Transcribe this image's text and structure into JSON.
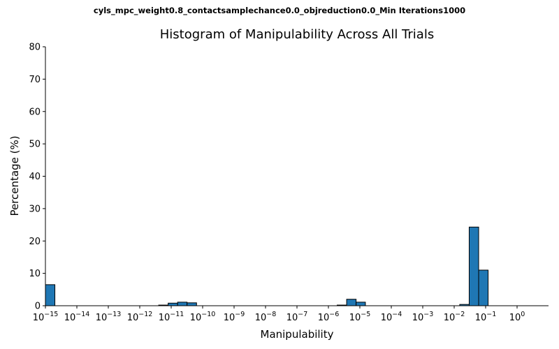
{
  "suptitle": "cyls_mpc_weight0.8_contactsamplechance0.0_objreduction0.0_Min Iterations1000",
  "chart_data": {
    "type": "bar",
    "title": "Histogram of Manipulability Across All Trials",
    "xlabel": "Manipulability",
    "ylabel": "Percentage (%)",
    "xscale": "log",
    "xlim": [
      "1e-15",
      "1e0"
    ],
    "ylim": [
      0,
      80
    ],
    "yticks": [
      0,
      10,
      20,
      30,
      40,
      50,
      60,
      70,
      80
    ],
    "xtick_exponents": [
      "-15",
      "-14",
      "-13",
      "-12",
      "-11",
      "-10",
      "-9",
      "-8",
      "-7",
      "-6",
      "-5",
      "-4",
      "-3",
      "-2",
      "-1",
      "0"
    ],
    "bar_color": "#1f77b4",
    "edge_color": "#000000",
    "grid": false,
    "bars": [
      {
        "x_start": "1e-15",
        "x_end": "2e-15",
        "value": 6.5
      },
      {
        "x_start": "4e-12",
        "x_end": "8e-12",
        "value": 0.2
      },
      {
        "x_start": "8e-12",
        "x_end": "1.6e-11",
        "value": 0.8
      },
      {
        "x_start": "1.6e-11",
        "x_end": "3.2e-11",
        "value": 1.1
      },
      {
        "x_start": "3.2e-11",
        "x_end": "6.4e-11",
        "value": 0.9
      },
      {
        "x_start": "1.9e-6",
        "x_end": "3.8e-6",
        "value": 0.2
      },
      {
        "x_start": "3.8e-6",
        "x_end": "7.6e-6",
        "value": 2.0
      },
      {
        "x_start": "7.6e-6",
        "x_end": "1.5e-5",
        "value": 1.1
      },
      {
        "x_start": "1.5e-2",
        "x_end": "3.0e-2",
        "value": 0.4
      },
      {
        "x_start": "3.0e-2",
        "x_end": "6.0e-2",
        "value": 24.3
      },
      {
        "x_start": "6.0e-2",
        "x_end": "1.2e-1",
        "value": 11.0
      }
    ]
  }
}
